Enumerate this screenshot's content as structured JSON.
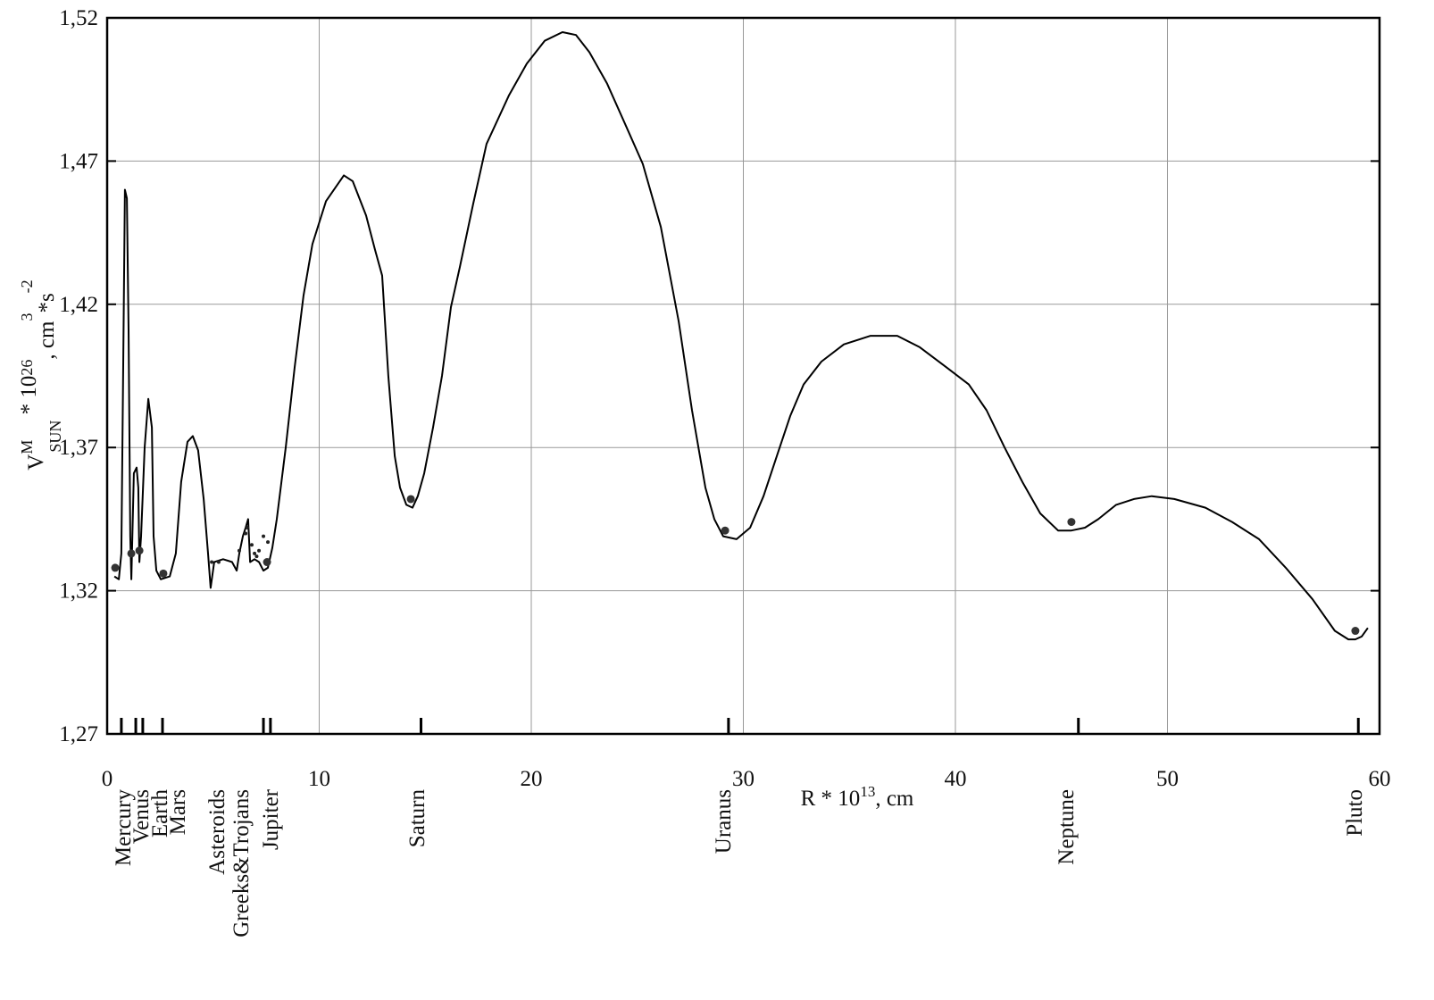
{
  "chart_data": {
    "type": "line",
    "ylabel_parts": [
      "V",
      "M",
      "SUN",
      " * 10",
      "26",
      ", cm",
      "3",
      "*s",
      "-2"
    ],
    "xlabel_parts": [
      "R * 10",
      "13",
      ", cm"
    ],
    "xlim": [
      0,
      60
    ],
    "xticks": [
      0,
      10,
      20,
      30,
      40,
      50,
      60
    ],
    "ylim": [
      1.27,
      1.52
    ],
    "yticks": [
      {
        "value": 1.27,
        "label": "1,27"
      },
      {
        "value": 1.32,
        "label": "1,32"
      },
      {
        "value": 1.37,
        "label": "1,37"
      },
      {
        "value": 1.42,
        "label": "1,42"
      },
      {
        "value": 1.47,
        "label": "1,47"
      },
      {
        "value": 1.52,
        "label": "1,52"
      }
    ],
    "grid": true,
    "series": [
      {
        "type": "line",
        "color": "#000000",
        "x": [
          0.34,
          0.55,
          0.67,
          0.76,
          0.84,
          0.93,
          1.01,
          1.09,
          1.14,
          1.26,
          1.39,
          1.47,
          1.52,
          1.6,
          1.77,
          1.94,
          2.11,
          2.19,
          2.32,
          2.53,
          2.95,
          3.24,
          3.49,
          3.79,
          4.04,
          4.29,
          4.55,
          4.76,
          4.88,
          5.05,
          5.47,
          5.89,
          6.11,
          6.23,
          6.4,
          6.53,
          6.65,
          6.74,
          6.95,
          7.16,
          7.37,
          7.58,
          7.79,
          8.0,
          8.42,
          8.84,
          9.26,
          9.68,
          10.32,
          11.16,
          11.58,
          12.21,
          12.63,
          12.97,
          13.26,
          13.56,
          13.81,
          14.11,
          14.4,
          14.65,
          14.95,
          15.37,
          15.79,
          16.21,
          16.63,
          17.26,
          17.89,
          18.95,
          19.79,
          20.63,
          21.47,
          22.11,
          22.74,
          23.58,
          24.42,
          25.26,
          26.11,
          26.95,
          27.58,
          28.21,
          28.63,
          29.05,
          29.68,
          30.32,
          30.95,
          31.58,
          32.21,
          32.84,
          33.68,
          34.74,
          36.0,
          37.26,
          38.32,
          39.58,
          40.63,
          41.47,
          42.32,
          43.16,
          44.0,
          44.84,
          45.47,
          46.11,
          46.74,
          47.58,
          48.42,
          49.26,
          50.32,
          51.79,
          53.05,
          54.32,
          55.58,
          56.84,
          57.89,
          58.53,
          58.86,
          59.16,
          59.45
        ],
        "values": [
          1.325,
          1.324,
          1.333,
          1.402,
          1.46,
          1.457,
          1.411,
          1.339,
          1.324,
          1.361,
          1.363,
          1.356,
          1.33,
          1.339,
          1.37,
          1.387,
          1.377,
          1.339,
          1.327,
          1.324,
          1.325,
          1.333,
          1.358,
          1.372,
          1.374,
          1.369,
          1.352,
          1.333,
          1.321,
          1.33,
          1.331,
          1.33,
          1.327,
          1.333,
          1.339,
          1.342,
          1.345,
          1.33,
          1.331,
          1.33,
          1.327,
          1.328,
          1.335,
          1.345,
          1.37,
          1.398,
          1.423,
          1.441,
          1.456,
          1.465,
          1.463,
          1.451,
          1.439,
          1.43,
          1.395,
          1.367,
          1.356,
          1.35,
          1.349,
          1.353,
          1.361,
          1.377,
          1.395,
          1.419,
          1.433,
          1.455,
          1.476,
          1.493,
          1.504,
          1.512,
          1.515,
          1.514,
          1.508,
          1.497,
          1.483,
          1.469,
          1.447,
          1.414,
          1.383,
          1.356,
          1.345,
          1.339,
          1.338,
          1.342,
          1.353,
          1.367,
          1.381,
          1.392,
          1.4,
          1.406,
          1.409,
          1.409,
          1.405,
          1.398,
          1.392,
          1.383,
          1.37,
          1.358,
          1.347,
          1.341,
          1.341,
          1.342,
          1.345,
          1.35,
          1.352,
          1.353,
          1.352,
          1.349,
          1.344,
          1.338,
          1.328,
          1.317,
          1.306,
          1.303,
          1.303,
          1.304,
          1.307
        ]
      },
      {
        "type": "scatter",
        "color": "#333333",
        "size": 4.5,
        "x": [
          0.38,
          1.14,
          1.52,
          2.65,
          7.54,
          14.32,
          29.14,
          45.47,
          58.86
        ],
        "values": [
          1.328,
          1.333,
          1.334,
          1.326,
          1.33,
          1.352,
          1.341,
          1.344,
          1.306
        ]
      },
      {
        "type": "scatter",
        "color": "#222222",
        "size": 2,
        "x": [
          4.93,
          5.26,
          6.23,
          6.53,
          6.61,
          6.82,
          6.95,
          7.16,
          7.37,
          7.58,
          7.05
        ],
        "values": [
          1.33,
          1.33,
          1.334,
          1.34,
          1.342,
          1.336,
          1.333,
          1.334,
          1.339,
          1.337,
          1.332
        ]
      }
    ],
    "markers": [
      {
        "label": "Mercury",
        "x": 0.67
      },
      {
        "label": "Venus",
        "x": 1.35
      },
      {
        "label": "Earth",
        "x": 1.68
      },
      {
        "label": "Mars",
        "x": 2.61
      },
      {
        "label": "Asteroids",
        "x": null
      },
      {
        "label": "Greeks&Trojans",
        "x": 7.37
      },
      {
        "label": "Jupiter",
        "x": 7.7
      },
      {
        "label": "Saturn",
        "x": 14.8
      },
      {
        "label": "Uranus",
        "x": 29.3
      },
      {
        "label": "Neptune",
        "x": 45.8
      },
      {
        "label": "Pluto",
        "x": 59.0
      }
    ]
  }
}
